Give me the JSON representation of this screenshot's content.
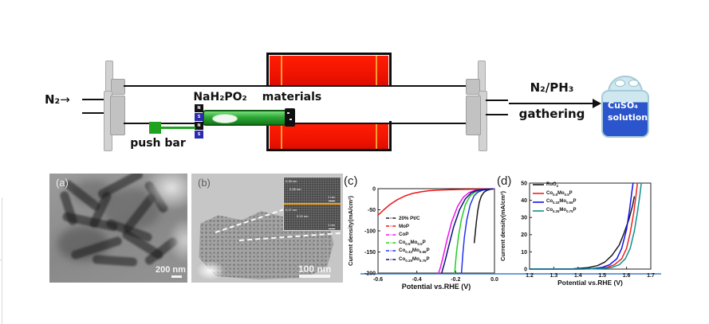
{
  "palette": {
    "furnace_red": "#f01400",
    "heater_orange": "#ff9d2e",
    "boat_green": "#2fa838",
    "boat_border": "#0e5c13",
    "push_green": "#1fa31f",
    "magnet_blue": "#2b2bb0",
    "magnet_black": "#111111",
    "flange_gray": "#d2d2d2",
    "flange_gray_dark": "#c2c2c2",
    "bottle_light_blue": "#cfe7ee",
    "bottle_dark_blue": "#2b55cc",
    "bottle_border": "#a5cbd8",
    "inset_orange": "#ff9a00",
    "underline_blue": "#6d9ed6",
    "tube_black": "#111111"
  },
  "schematic": {
    "n2_label": "N₂",
    "flow_arrow": "→",
    "nah2po2_label": "NaH₂PO₂",
    "materials_label": "materials",
    "push_bar_label": "push bar",
    "gas_label": "N₂/PH₃",
    "gathering_label": "gathering",
    "bottle": {
      "line1": "CuSO₄",
      "line2": "solution"
    },
    "magnets": [
      "N",
      "S",
      "N",
      "S"
    ]
  },
  "tem_panels": {
    "a": {
      "label": "(a)",
      "scale_text": "200 nm"
    },
    "b": {
      "label": "(b)",
      "scale_text": "100 nm",
      "inset": {
        "annotation_top_1": "0.28 nm",
        "annotation_top_2": "0.28 nm",
        "annotation_bottom_1": "0.27 nm",
        "annotation_bottom_2": "0.19 nm",
        "scale_top": "1 nm",
        "scale_bottom": "1 nm"
      }
    }
  },
  "chart_data": [
    {
      "id": "c",
      "type": "line",
      "panel_label": "(c)",
      "xlabel": "Potential vs.RHE (V)",
      "ylabel": "Current density(mA/cm²)",
      "xlim": [
        -0.6,
        0
      ],
      "ylim": [
        -200,
        0
      ],
      "xticks": [
        -0.6,
        -0.4,
        -0.2,
        0
      ],
      "xtick_labels": [
        "-0.6",
        "-0.4",
        "-0.2",
        "0.0"
      ],
      "yticks": [
        0,
        -50,
        -100,
        -150,
        -200
      ],
      "ytick_labels": [
        "0",
        "-50",
        "-100",
        "-150",
        "-200"
      ],
      "grid": false,
      "legend_position": "middle-left",
      "legend_dash": "4,1.6,1,1.6",
      "series": [
        {
          "name": "20% Pt/C",
          "label_segments": [
            "20% Pt/C"
          ],
          "color": "#1a1a1a",
          "points": [
            [
              -0.005,
              -0.5
            ],
            [
              -0.02,
              -1.5
            ],
            [
              -0.04,
              -4
            ],
            [
              -0.055,
              -9
            ],
            [
              -0.068,
              -18
            ],
            [
              -0.078,
              -32
            ],
            [
              -0.086,
              -52
            ],
            [
              -0.093,
              -78
            ],
            [
              -0.099,
              -105
            ],
            [
              -0.104,
              -128
            ]
          ]
        },
        {
          "name": "MoP",
          "label_segments": [
            "MoP"
          ],
          "color": "#ee1111",
          "points": [
            [
              0,
              -0.5
            ],
            [
              -0.06,
              -1
            ],
            [
              -0.12,
              -1.5
            ],
            [
              -0.18,
              -2
            ],
            [
              -0.24,
              -2.5
            ],
            [
              -0.3,
              -3.5
            ],
            [
              -0.34,
              -5
            ],
            [
              -0.38,
              -7.5
            ],
            [
              -0.42,
              -11
            ],
            [
              -0.46,
              -17
            ],
            [
              -0.5,
              -26
            ],
            [
              -0.54,
              -38
            ],
            [
              -0.57,
              -50
            ],
            [
              -0.6,
              -63
            ]
          ]
        },
        {
          "name": "CoP",
          "label_segments": [
            "CoP"
          ],
          "color": "#ee11ee",
          "points": [
            [
              -0.01,
              -0.5
            ],
            [
              -0.06,
              -1.5
            ],
            [
              -0.1,
              -4
            ],
            [
              -0.13,
              -9
            ],
            [
              -0.16,
              -20
            ],
            [
              -0.19,
              -42
            ],
            [
              -0.22,
              -78
            ],
            [
              -0.245,
              -122
            ],
            [
              -0.265,
              -162
            ],
            [
              -0.278,
              -186
            ],
            [
              -0.288,
              -200
            ]
          ]
        },
        {
          "name": "Co0.5Mo0.5P",
          "label_segments": [
            "Co",
            "0.5",
            "Mo",
            "0.5",
            "P"
          ],
          "color": "#22cc22",
          "points": [
            [
              -0.005,
              -0.5
            ],
            [
              -0.04,
              -1.5
            ],
            [
              -0.07,
              -3.5
            ],
            [
              -0.1,
              -8
            ],
            [
              -0.125,
              -17
            ],
            [
              -0.15,
              -38
            ],
            [
              -0.17,
              -72
            ],
            [
              -0.185,
              -112
            ],
            [
              -0.196,
              -152
            ],
            [
              -0.201,
              -178
            ],
            [
              -0.205,
              -200
            ]
          ]
        },
        {
          "name": "Co0.33Mo0.66P",
          "label_segments": [
            "Co",
            "0.33",
            "Mo",
            "0.66",
            "P"
          ],
          "color": "#2233ee",
          "points": [
            [
              -0.003,
              -0.5
            ],
            [
              -0.03,
              -1.5
            ],
            [
              -0.06,
              -3.5
            ],
            [
              -0.085,
              -8
            ],
            [
              -0.105,
              -17
            ],
            [
              -0.125,
              -38
            ],
            [
              -0.143,
              -75
            ],
            [
              -0.155,
              -115
            ],
            [
              -0.163,
              -155
            ],
            [
              -0.17,
              -200
            ]
          ]
        },
        {
          "name": "Co0.25Mo0.75P",
          "label_segments": [
            "Co",
            "0.25",
            "Mo",
            "0.75",
            "P"
          ],
          "color": "#10107a",
          "points": [
            [
              -0.01,
              -0.5
            ],
            [
              -0.05,
              -1.5
            ],
            [
              -0.09,
              -4
            ],
            [
              -0.12,
              -10
            ],
            [
              -0.15,
              -24
            ],
            [
              -0.18,
              -50
            ],
            [
              -0.21,
              -90
            ],
            [
              -0.235,
              -135
            ],
            [
              -0.255,
              -172
            ],
            [
              -0.272,
              -200
            ]
          ]
        }
      ]
    },
    {
      "id": "d",
      "type": "line",
      "panel_label": "(d)",
      "xlabel": "Potential vs.RHE (V)",
      "ylabel": "Current density(mA/cm²)",
      "xlim": [
        1.2,
        1.7
      ],
      "ylim": [
        0,
        50
      ],
      "xticks": [
        1.2,
        1.3,
        1.4,
        1.5,
        1.6,
        1.7
      ],
      "xtick_labels": [
        "1.2",
        "1.3",
        "1.4",
        "1.5",
        "1.6",
        "1.7"
      ],
      "yticks": [
        0,
        10,
        20,
        30,
        40,
        50
      ],
      "ytick_labels": [
        "0",
        "10",
        "20",
        "30",
        "40",
        "50"
      ],
      "grid": false,
      "legend_position": "top-left",
      "legend_dash": "",
      "series": [
        {
          "name": "RuO2",
          "label_segments": [
            "RuO",
            "2"
          ],
          "color": "#1a1a1a",
          "points": [
            [
              1.2,
              0
            ],
            [
              1.3,
              0
            ],
            [
              1.38,
              0.2
            ],
            [
              1.44,
              0.8
            ],
            [
              1.48,
              2
            ],
            [
              1.51,
              4
            ],
            [
              1.54,
              8
            ],
            [
              1.57,
              14
            ],
            [
              1.59,
              21
            ],
            [
              1.61,
              29
            ],
            [
              1.625,
              37
            ],
            [
              1.632,
              42
            ]
          ]
        },
        {
          "name": "Co0.5Mo0.5P",
          "label_segments": [
            "Co",
            "0.5",
            "Mo",
            "0.5",
            "P"
          ],
          "color": "#ee2222",
          "points": [
            [
              1.2,
              0
            ],
            [
              1.4,
              0
            ],
            [
              1.48,
              0.3
            ],
            [
              1.52,
              1
            ],
            [
              1.55,
              2.5
            ],
            [
              1.58,
              6
            ],
            [
              1.6,
              12
            ],
            [
              1.615,
              21
            ],
            [
              1.63,
              33
            ],
            [
              1.64,
              44
            ],
            [
              1.645,
              50
            ]
          ]
        },
        {
          "name": "Co0.33Mo0.66P",
          "label_segments": [
            "Co",
            "0.33",
            "Mo",
            "0.66",
            "P"
          ],
          "color": "#1111ee",
          "points": [
            [
              1.2,
              0
            ],
            [
              1.38,
              0
            ],
            [
              1.46,
              0.3
            ],
            [
              1.5,
              1
            ],
            [
              1.53,
              2.5
            ],
            [
              1.56,
              6
            ],
            [
              1.58,
              12
            ],
            [
              1.6,
              23
            ],
            [
              1.612,
              34
            ],
            [
              1.622,
              45
            ],
            [
              1.627,
              50
            ]
          ]
        },
        {
          "name": "Co0.25Mo0.75P",
          "label_segments": [
            "Co",
            "0.25",
            "Mo",
            "0.75",
            "P"
          ],
          "color": "#0f8f8f",
          "points": [
            [
              1.2,
              0
            ],
            [
              1.42,
              0
            ],
            [
              1.5,
              0.3
            ],
            [
              1.54,
              1
            ],
            [
              1.57,
              2.5
            ],
            [
              1.595,
              6
            ],
            [
              1.615,
              12
            ],
            [
              1.632,
              22
            ],
            [
              1.645,
              33
            ],
            [
              1.655,
              43
            ],
            [
              1.661,
              50
            ]
          ]
        }
      ]
    }
  ]
}
